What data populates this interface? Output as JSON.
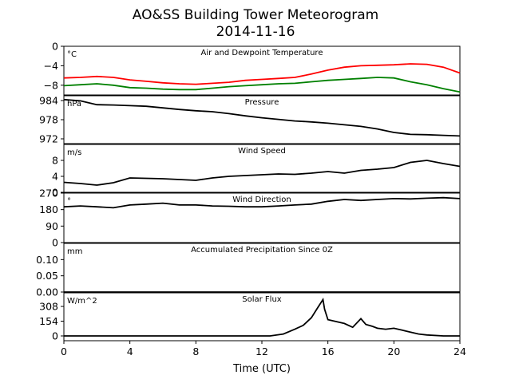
{
  "title": "AO&SS Building Tower Meteorogram",
  "subtitle": "2014-11-16",
  "xlabel": "Time (UTC)",
  "chart_data": {
    "type": "line",
    "xlabel": "Time (UTC)",
    "xlim": [
      0,
      24
    ],
    "xticks": [
      0,
      4,
      8,
      12,
      16,
      20,
      24
    ],
    "panels": [
      {
        "id": "temp",
        "title": "Air and Dewpoint Temperature",
        "unit": "°C",
        "ylim": [
          -10,
          0
        ],
        "yticks": [
          0,
          -4,
          -8
        ],
        "ytick_labels": [
          "0",
          "−4",
          "−8"
        ],
        "series": [
          {
            "color": "#ff0000",
            "x": [
              0,
              1,
              2,
              3,
              4,
              5,
              6,
              7,
              8,
              9,
              10,
              11,
              12,
              13,
              14,
              15,
              16,
              17,
              18,
              19,
              20,
              21,
              22,
              23,
              24
            ],
            "y": [
              -6.5,
              -6.4,
              -6.2,
              -6.4,
              -6.9,
              -7.2,
              -7.5,
              -7.7,
              -7.8,
              -7.6,
              -7.4,
              -7.0,
              -6.8,
              -6.6,
              -6.4,
              -5.7,
              -4.9,
              -4.3,
              -4.0,
              -3.9,
              -3.8,
              -3.6,
              -3.7,
              -4.3,
              -5.5
            ]
          },
          {
            "color": "#008000",
            "x": [
              0,
              1,
              2,
              3,
              4,
              5,
              6,
              7,
              8,
              9,
              10,
              11,
              12,
              13,
              14,
              15,
              16,
              17,
              18,
              19,
              20,
              21,
              22,
              23,
              24
            ],
            "y": [
              -8.1,
              -7.9,
              -7.7,
              -8.0,
              -8.5,
              -8.6,
              -8.8,
              -8.9,
              -8.9,
              -8.6,
              -8.3,
              -8.1,
              -7.9,
              -7.7,
              -7.6,
              -7.3,
              -7.0,
              -6.8,
              -6.6,
              -6.4,
              -6.5,
              -7.3,
              -7.9,
              -8.7,
              -9.4
            ]
          }
        ]
      },
      {
        "id": "pres",
        "title": "Pressure",
        "unit": "hPa",
        "ylim": [
          970.5,
          985.5
        ],
        "yticks": [
          984,
          978,
          972
        ],
        "ytick_labels": [
          "984",
          "978",
          "972"
        ],
        "series": [
          {
            "color": "#000000",
            "x": [
              0,
              1,
              2,
              3,
              4,
              5,
              6,
              7,
              8,
              9,
              10,
              11,
              12,
              13,
              14,
              15,
              16,
              17,
              18,
              19,
              20,
              21,
              22,
              23,
              24
            ],
            "y": [
              984.3,
              983.9,
              982.7,
              982.6,
              982.4,
              982.2,
              981.7,
              981.2,
              980.8,
              980.5,
              979.9,
              979.2,
              978.6,
              978.1,
              977.6,
              977.3,
              976.9,
              976.4,
              975.9,
              975.1,
              974.0,
              973.4,
              973.3,
              973.1,
              972.9
            ]
          }
        ]
      },
      {
        "id": "wspd",
        "title": "Wind Speed",
        "unit": "m/s",
        "ylim": [
          0,
          12
        ],
        "yticks": [
          0,
          4,
          8
        ],
        "ytick_labels": [
          "0",
          "4",
          "8"
        ],
        "series": [
          {
            "color": "#000000",
            "x": [
              0,
              1,
              2,
              3,
              4,
              5,
              6,
              7,
              8,
              9,
              10,
              11,
              12,
              13,
              14,
              15,
              16,
              17,
              18,
              19,
              20,
              21,
              22,
              23,
              24
            ],
            "y": [
              2.5,
              2.2,
              1.8,
              2.4,
              3.6,
              3.5,
              3.4,
              3.2,
              3.0,
              3.6,
              4.0,
              4.2,
              4.4,
              4.6,
              4.5,
              4.8,
              5.2,
              4.8,
              5.5,
              5.8,
              6.2,
              7.5,
              8.0,
              7.2,
              6.5
            ]
          }
        ]
      },
      {
        "id": "wdir",
        "title": "Wind Direction",
        "unit": "°",
        "ylim": [
          0,
          270
        ],
        "yticks": [
          270,
          180,
          90,
          0
        ],
        "ytick_labels": [
          "270",
          "180",
          "90",
          "0"
        ],
        "series": [
          {
            "color": "#000000",
            "x": [
              0,
              1,
              2,
              3,
              4,
              5,
              6,
              7,
              8,
              9,
              10,
              11,
              12,
              13,
              14,
              15,
              16,
              17,
              18,
              19,
              20,
              21,
              22,
              23,
              24
            ],
            "y": [
              195,
              200,
              195,
              190,
              205,
              210,
              215,
              205,
              205,
              200,
              198,
              195,
              195,
              200,
              205,
              210,
              225,
              235,
              230,
              235,
              240,
              238,
              242,
              245,
              240
            ]
          }
        ]
      },
      {
        "id": "precip",
        "title": "Accumulated Precipitation Since 0Z",
        "unit": "mm",
        "ylim": [
          0,
          0.15
        ],
        "yticks": [
          0.1,
          0.05,
          0.0
        ],
        "ytick_labels": [
          "0.10",
          "0.05",
          "0.00"
        ],
        "series": [
          {
            "color": "#000000",
            "x": [
              0,
              24
            ],
            "y": [
              0,
              0
            ]
          }
        ]
      },
      {
        "id": "solar",
        "title": "Solar Flux",
        "unit": "W/m^2",
        "ylim": [
          -50,
          450
        ],
        "yticks": [
          308,
          154,
          0
        ],
        "ytick_labels": [
          "308",
          "154",
          "0"
        ],
        "series": [
          {
            "color": "#000000",
            "x": [
              0,
              12.5,
              13.3,
              14,
              14.5,
              15,
              15.4,
              15.7,
              15.8,
              16,
              16.5,
              17,
              17.5,
              18,
              18.3,
              18.7,
              19,
              19.5,
              20,
              20.5,
              21,
              21.5,
              22,
              23,
              24
            ],
            "y": [
              0,
              0,
              20,
              70,
              110,
              190,
              300,
              380,
              280,
              170,
              150,
              130,
              90,
              180,
              120,
              100,
              80,
              70,
              80,
              60,
              40,
              20,
              10,
              0,
              0
            ]
          }
        ]
      }
    ]
  }
}
